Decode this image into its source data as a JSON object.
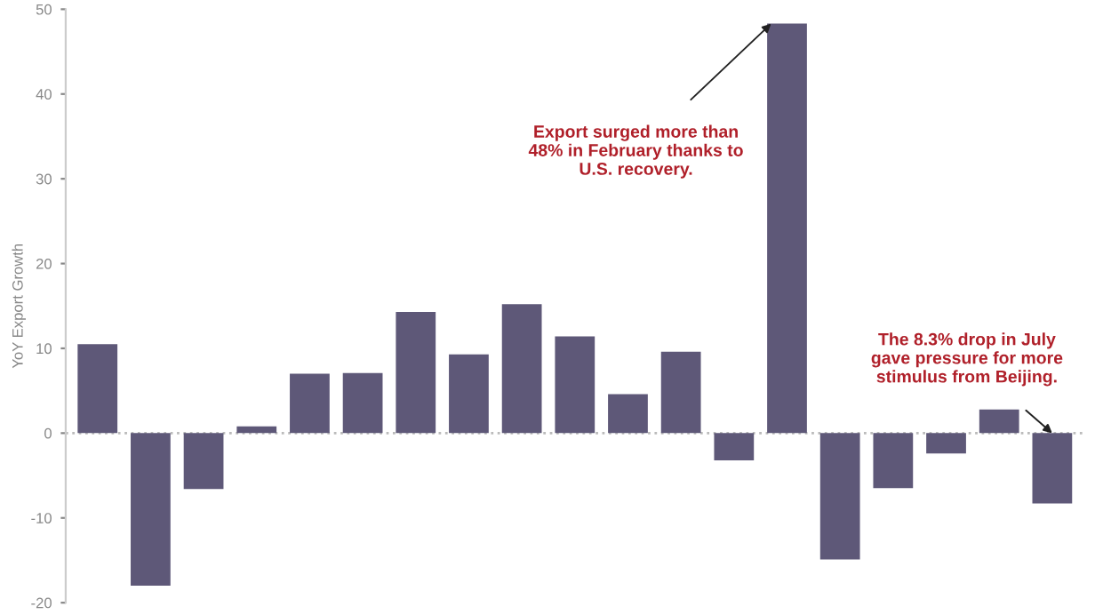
{
  "chart_data": {
    "type": "bar",
    "ylabel": "YoY Export Growth",
    "categories": [
      null,
      null,
      null,
      null,
      null,
      null,
      null,
      null,
      null,
      null,
      null,
      null,
      null,
      null,
      null,
      null,
      null,
      null,
      null
    ],
    "values": [
      10.5,
      -18.0,
      -6.6,
      0.8,
      7.0,
      7.1,
      14.3,
      9.3,
      15.2,
      11.4,
      4.6,
      9.6,
      -3.2,
      48.3,
      -14.9,
      -6.5,
      -2.4,
      2.8,
      -8.3
    ],
    "color": "#5e5878",
    "ylim": [
      -20,
      50
    ],
    "yticks": [
      -20,
      -10,
      0,
      10,
      20,
      30,
      40,
      50
    ],
    "ref_lines": [
      {
        "axis": "y",
        "value": 0,
        "color": "#bbbbbb",
        "line_style": "dotted"
      }
    ],
    "annotations": [
      "Export surged more than\n48% in February thanks to\nU.S. recovery.",
      "The 8.3% drop in July\ngave pressure for more\nstimulus from Beijing."
    ],
    "grid": false,
    "legend": false
  }
}
